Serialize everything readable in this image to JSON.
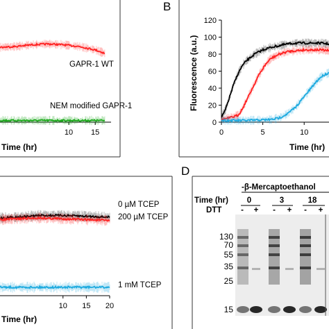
{
  "chart_data": [
    {
      "panel": "A",
      "type": "line",
      "xlabel": "Time (hr)",
      "ylabel": "",
      "x_ticks": [
        10,
        15
      ],
      "xlim": [
        -3,
        18
      ],
      "ylim": [
        0,
        120
      ],
      "series": [
        {
          "name": "GAPR-1 WT",
          "color": "#ff2020",
          "x": [
            -3,
            0,
            3,
            6,
            9,
            12,
            15,
            16.8
          ],
          "y": [
            88,
            89,
            91,
            92,
            91,
            89,
            85,
            81
          ]
        },
        {
          "name": "NEM modified GAPR-1",
          "color": "#1aa81a",
          "x": [
            -3,
            0,
            5,
            10,
            15,
            16.8
          ],
          "y": [
            2,
            2,
            2,
            2,
            2,
            2
          ]
        }
      ]
    },
    {
      "panel": "B",
      "type": "line",
      "xlabel": "Time (hr)",
      "ylabel": "Fluorescence (a.u.)",
      "x_ticks": [
        0,
        5,
        10
      ],
      "y_ticks": [
        0,
        20,
        40,
        60,
        80,
        100,
        120
      ],
      "xlim": [
        0,
        13
      ],
      "ylim": [
        0,
        120
      ],
      "series": [
        {
          "name": "",
          "color": "#000000",
          "x": [
            0,
            0.5,
            1,
            1.5,
            2,
            2.5,
            3,
            4,
            5,
            6,
            7,
            8,
            9,
            10,
            11,
            12,
            13
          ],
          "y": [
            5,
            15,
            30,
            45,
            57,
            66,
            72,
            80,
            85,
            88,
            90,
            92,
            93,
            93,
            93,
            93,
            92
          ]
        },
        {
          "name": "",
          "color": "#ff2020",
          "x": [
            0,
            1,
            2,
            2.5,
            3,
            3.5,
            4,
            4.5,
            5,
            5.5,
            6,
            7,
            8,
            9,
            10,
            11,
            12,
            13
          ],
          "y": [
            3,
            5,
            8,
            15,
            25,
            35,
            45,
            55,
            63,
            70,
            75,
            80,
            83,
            84,
            85,
            85,
            85,
            84
          ]
        },
        {
          "name": "",
          "color": "#1eaadf",
          "x": [
            0,
            3,
            6,
            7,
            8,
            9,
            10,
            10.5,
            11,
            11.5,
            12,
            12.5,
            13
          ],
          "y": [
            2,
            2,
            3,
            5,
            10,
            18,
            30,
            36,
            42,
            48,
            53,
            56,
            58
          ]
        }
      ]
    },
    {
      "panel": "C",
      "type": "line",
      "xlabel": "Time (hr)",
      "ylabel": "",
      "x_ticks": [
        10,
        15,
        20
      ],
      "xlim": [
        -3.5,
        20
      ],
      "ylim": [
        0,
        120
      ],
      "series": [
        {
          "name": "0 µM TCEP",
          "color": "#000000",
          "x": [
            -3.5,
            0,
            5,
            10,
            15,
            20
          ],
          "y": [
            92,
            93,
            95,
            95,
            94,
            93
          ]
        },
        {
          "name": "200 µM TCEP",
          "color": "#ff2020",
          "x": [
            -3.5,
            0,
            5,
            10,
            15,
            20
          ],
          "y": [
            90,
            91,
            92,
            91,
            90,
            89
          ]
        },
        {
          "name": "1 mM TCEP",
          "color": "#1eaadf",
          "x": [
            -3.5,
            0,
            5,
            10,
            15,
            20
          ],
          "y": [
            10,
            10,
            10,
            10,
            10,
            10
          ]
        }
      ]
    }
  ],
  "panelA": {
    "series_labels": [
      "GAPR-1 WT",
      "NEM modified GAPR-1"
    ],
    "x_ticks": [
      "10",
      "15"
    ],
    "xlabel": "Time (hr)"
  },
  "panelB": {
    "letter": "B",
    "ylabel": "Fluorescence (a.u.)",
    "y_ticks": [
      "0",
      "20",
      "40",
      "60",
      "80",
      "100",
      "120"
    ],
    "x_ticks": [
      "0",
      "5",
      "10"
    ],
    "xlabel": "Time (hr)"
  },
  "panelC": {
    "series_labels": [
      "0 µM TCEP",
      "200 µM TCEP",
      "1 mM TCEP"
    ],
    "x_ticks": [
      "10",
      "15",
      "20"
    ],
    "xlabel": "Time (hr)"
  },
  "panelD": {
    "letter": "D",
    "title": "-β-Mercaptoethanol",
    "time_label": "Time (hr)",
    "time_values": [
      "0",
      "3",
      "18"
    ],
    "dtt_label": "DTT",
    "dtt_signs": [
      "-",
      "+",
      "-",
      "+",
      "-",
      "+"
    ],
    "mw_markers": [
      "130",
      "70",
      "55",
      "35",
      "25",
      "15"
    ]
  }
}
